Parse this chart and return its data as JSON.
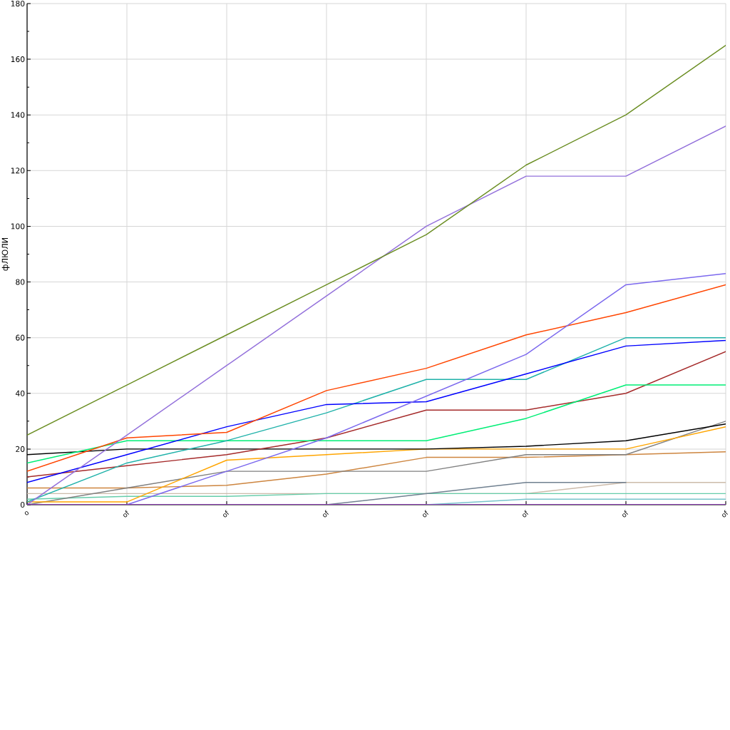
{
  "chart_data": {
    "type": "line",
    "ylabel": "фЛЮЛИ",
    "categories": [
      "o",
      "of",
      "of",
      "of",
      "of",
      "of",
      "of",
      "of"
    ],
    "ylim": [
      0,
      180
    ],
    "yticks": [
      0,
      {
        "value": 10,
        "label": null
      },
      20,
      {
        "value": 30,
        "label": null
      },
      40,
      {
        "value": 50,
        "label": null
      },
      60,
      {
        "value": 70,
        "label": null
      },
      80,
      {
        "value": 90,
        "label": null
      },
      100,
      {
        "value": 110,
        "label": null
      },
      120,
      {
        "value": 130,
        "label": null
      },
      140,
      {
        "value": 150,
        "label": null
      },
      160,
      {
        "value": 170,
        "label": null
      },
      180
    ],
    "grid": true,
    "series": [
      {
        "color": "#ccbbaa",
        "values": [
          4,
          4,
          4,
          4,
          4,
          4,
          8,
          8
        ]
      },
      {
        "color": "#66cdaa",
        "values": [
          2,
          3,
          3,
          4,
          4,
          4,
          4,
          4
        ]
      },
      {
        "color": "#708090",
        "values": [
          null,
          null,
          null,
          0,
          4,
          8,
          8,
          null
        ]
      },
      {
        "color": "#77c4cc",
        "values": [
          null,
          null,
          null,
          null,
          0,
          2,
          2,
          2
        ]
      },
      {
        "color": "#cd853f",
        "values": [
          6,
          6,
          7,
          11,
          17,
          17,
          18,
          19
        ]
      },
      {
        "color": "#808080",
        "values": [
          0,
          6,
          12,
          12,
          12,
          18,
          18,
          30
        ]
      },
      {
        "color": "#ffa500",
        "values": [
          1,
          1,
          16,
          18,
          20,
          20,
          20,
          28
        ]
      },
      {
        "color": "#000000",
        "values": [
          18,
          20,
          20,
          20,
          20,
          21,
          23,
          29
        ]
      },
      {
        "color": "#a52a2a",
        "values": [
          10,
          14,
          18,
          24,
          34,
          34,
          40,
          55
        ]
      },
      {
        "color": "#00ee76",
        "values": [
          15,
          23,
          23,
          23,
          23,
          31,
          43,
          43
        ]
      },
      {
        "color": "#20b2aa",
        "values": [
          1,
          15,
          23,
          33,
          45,
          45,
          60,
          60
        ]
      },
      {
        "color": "#0000ff",
        "values": [
          8,
          18,
          28,
          36,
          37,
          47,
          57,
          59
        ]
      },
      {
        "color": "#ff4500",
        "values": [
          12,
          24,
          26,
          41,
          49,
          61,
          69,
          79
        ]
      },
      {
        "color": "#7b68ee",
        "values": [
          null,
          0,
          12,
          24,
          39,
          54,
          79,
          83
        ]
      },
      {
        "color": "#9370db",
        "values": [
          0,
          25,
          50,
          75,
          100,
          118,
          118,
          136
        ]
      },
      {
        "color": "#6b8e23",
        "values": [
          25,
          43,
          61,
          79,
          97,
          122,
          140,
          165
        ]
      },
      {
        "color": "#9932cc",
        "values": [
          0,
          0,
          0,
          0,
          0,
          0,
          0,
          0
        ]
      }
    ]
  }
}
